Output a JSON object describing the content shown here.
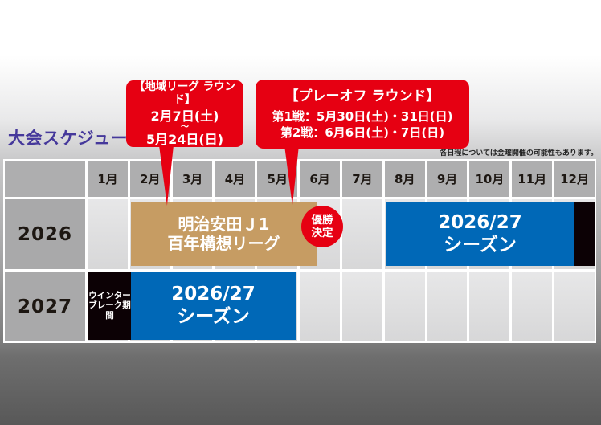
{
  "page": {
    "title": "大会スケジュール",
    "note": "各日程については金曜開催の可能性もあります。"
  },
  "callouts": {
    "regional": {
      "title": "【地域リーグ ラウンド】",
      "date_start": "2月7日(土)",
      "tilde": "〜",
      "date_end": "5月24日(日)"
    },
    "playoff": {
      "title": "【プレーオフ ラウンド】",
      "match1": "第1戦：5月30日(土)・31日(日)",
      "match2": "第2戦：6月6日(土)・7日(日)"
    }
  },
  "schedule": {
    "months": [
      "1月",
      "2月",
      "3月",
      "4月",
      "5月",
      "6月",
      "7月",
      "8月",
      "9月",
      "10月",
      "11月",
      "12月"
    ],
    "rows": [
      {
        "year": "2026",
        "league_bar": {
          "line1": "明治安田Ｊ1",
          "line2": "百年構想リーグ"
        },
        "badge": {
          "line1": "優勝",
          "line2": "決定"
        },
        "season_bar": {
          "line1": "2026/27",
          "line2": "シーズン"
        }
      },
      {
        "year": "2027",
        "break_bar": {
          "line1": "ウインター",
          "line2": "ブレーク期間"
        },
        "season_bar": {
          "line1": "2026/27",
          "line2": "シーズン"
        }
      }
    ]
  },
  "colors": {
    "accent_red": "#e60012",
    "league_tan": "#c69c63",
    "season_blue": "#0068b7",
    "break_black": "#0c0105",
    "title_purple": "#45389b",
    "header_gray": "#aeaeaf"
  }
}
